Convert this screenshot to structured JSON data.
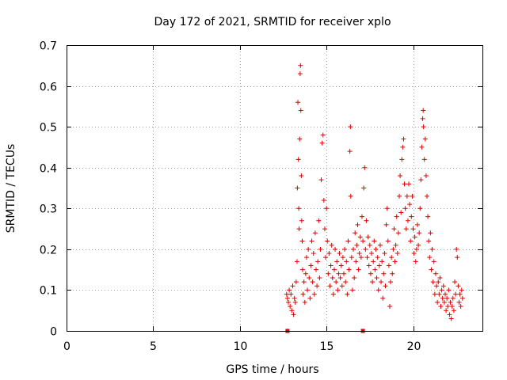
{
  "chart_data": {
    "type": "scatter",
    "title": "Day 172 of 2021, SRMTID for receiver xplo",
    "xlabel": "GPS time / hours",
    "ylabel": "SRMTID / TECUs",
    "xlim": [
      0,
      24
    ],
    "ylim": [
      0,
      0.7
    ],
    "xticks": [
      0,
      5,
      10,
      15,
      20
    ],
    "xtick_labels": [
      "0",
      "5",
      "10",
      "15",
      "20"
    ],
    "yticks": [
      0,
      0.1,
      0.2,
      0.3,
      0.4,
      0.5,
      0.6,
      0.7
    ],
    "ytick_labels": [
      "0",
      "0.1",
      "0.2",
      "0.3",
      "0.4",
      "0.5",
      "0.6",
      "0.7"
    ],
    "grid": true,
    "marker": "plus",
    "color": "#e00000",
    "gap_markers": [
      12.75,
      17.1
    ],
    "series": [
      {
        "name": "SRMTID",
        "points": [
          [
            12.7,
            0.09
          ],
          [
            12.75,
            0.08
          ],
          [
            12.8,
            0.07
          ],
          [
            12.85,
            0.1
          ],
          [
            12.9,
            0.06
          ],
          [
            12.95,
            0.09
          ],
          [
            13.0,
            0.05
          ],
          [
            13.05,
            0.11
          ],
          [
            13.1,
            0.04
          ],
          [
            13.15,
            0.08
          ],
          [
            13.2,
            0.07
          ],
          [
            13.25,
            0.12
          ],
          [
            13.3,
            0.17
          ],
          [
            13.32,
            0.35
          ],
          [
            13.35,
            0.56
          ],
          [
            13.38,
            0.42
          ],
          [
            13.4,
            0.3
          ],
          [
            13.42,
            0.25
          ],
          [
            13.45,
            0.47
          ],
          [
            13.48,
            0.63
          ],
          [
            13.5,
            0.65
          ],
          [
            13.52,
            0.54
          ],
          [
            13.55,
            0.38
          ],
          [
            13.57,
            0.27
          ],
          [
            13.6,
            0.22
          ],
          [
            13.62,
            0.15
          ],
          [
            13.65,
            0.09
          ],
          [
            13.7,
            0.12
          ],
          [
            13.75,
            0.07
          ],
          [
            13.8,
            0.14
          ],
          [
            13.85,
            0.18
          ],
          [
            13.9,
            0.1
          ],
          [
            13.95,
            0.2
          ],
          [
            14.0,
            0.13
          ],
          [
            14.05,
            0.08
          ],
          [
            14.1,
            0.16
          ],
          [
            14.15,
            0.22
          ],
          [
            14.2,
            0.12
          ],
          [
            14.25,
            0.19
          ],
          [
            14.3,
            0.09
          ],
          [
            14.35,
            0.24
          ],
          [
            14.4,
            0.15
          ],
          [
            14.45,
            0.11
          ],
          [
            14.5,
            0.17
          ],
          [
            14.55,
            0.27
          ],
          [
            14.6,
            0.13
          ],
          [
            14.65,
            0.2
          ],
          [
            14.7,
            0.37
          ],
          [
            14.75,
            0.46
          ],
          [
            14.8,
            0.48
          ],
          [
            14.85,
            0.32
          ],
          [
            14.9,
            0.25
          ],
          [
            14.95,
            0.18
          ],
          [
            15.0,
            0.3
          ],
          [
            15.05,
            0.22
          ],
          [
            15.1,
            0.14
          ],
          [
            15.15,
            0.19
          ],
          [
            15.2,
            0.11
          ],
          [
            15.25,
            0.16
          ],
          [
            15.3,
            0.21
          ],
          [
            15.35,
            0.13
          ],
          [
            15.4,
            0.09
          ],
          [
            15.45,
            0.15
          ],
          [
            15.5,
            0.2
          ],
          [
            15.55,
            0.12
          ],
          [
            15.6,
            0.17
          ],
          [
            15.65,
            0.1
          ],
          [
            15.7,
            0.14
          ],
          [
            15.75,
            0.19
          ],
          [
            15.8,
            0.13
          ],
          [
            15.85,
            0.16
          ],
          [
            15.9,
            0.11
          ],
          [
            15.95,
            0.18
          ],
          [
            16.0,
            0.14
          ],
          [
            16.05,
            0.2
          ],
          [
            16.1,
            0.12
          ],
          [
            16.15,
            0.17
          ],
          [
            16.2,
            0.09
          ],
          [
            16.25,
            0.22
          ],
          [
            16.3,
            0.15
          ],
          [
            16.35,
            0.44
          ],
          [
            16.38,
            0.5
          ],
          [
            16.4,
            0.33
          ],
          [
            16.45,
            0.18
          ],
          [
            16.5,
            0.1
          ],
          [
            16.55,
            0.2
          ],
          [
            16.6,
            0.13
          ],
          [
            16.65,
            0.24
          ],
          [
            16.7,
            0.17
          ],
          [
            16.75,
            0.21
          ],
          [
            16.8,
            0.26
          ],
          [
            16.85,
            0.15
          ],
          [
            16.9,
            0.19
          ],
          [
            16.95,
            0.23
          ],
          [
            17.0,
            0.18
          ],
          [
            17.05,
            0.28
          ],
          [
            17.1,
            0.22
          ],
          [
            17.15,
            0.35
          ],
          [
            17.2,
            0.4
          ],
          [
            17.25,
            0.2
          ],
          [
            17.3,
            0.27
          ],
          [
            17.35,
            0.18
          ],
          [
            17.4,
            0.23
          ],
          [
            17.45,
            0.16
          ],
          [
            17.5,
            0.21
          ],
          [
            17.55,
            0.14
          ],
          [
            17.6,
            0.19
          ],
          [
            17.65,
            0.12
          ],
          [
            17.7,
            0.17
          ],
          [
            17.75,
            0.22
          ],
          [
            17.8,
            0.15
          ],
          [
            17.85,
            0.2
          ],
          [
            17.9,
            0.13
          ],
          [
            17.95,
            0.18
          ],
          [
            18.0,
            0.1
          ],
          [
            18.05,
            0.16
          ],
          [
            18.1,
            0.21
          ],
          [
            18.15,
            0.12
          ],
          [
            18.2,
            0.17
          ],
          [
            18.25,
            0.08
          ],
          [
            18.3,
            0.14
          ],
          [
            18.35,
            0.19
          ],
          [
            18.4,
            0.11
          ],
          [
            18.45,
            0.26
          ],
          [
            18.5,
            0.3
          ],
          [
            18.55,
            0.22
          ],
          [
            18.6,
            0.16
          ],
          [
            18.65,
            0.06
          ],
          [
            18.7,
            0.12
          ],
          [
            18.75,
            0.18
          ],
          [
            18.8,
            0.14
          ],
          [
            18.85,
            0.2
          ],
          [
            18.9,
            0.25
          ],
          [
            18.95,
            0.17
          ],
          [
            19.0,
            0.21
          ],
          [
            19.05,
            0.28
          ],
          [
            19.1,
            0.19
          ],
          [
            19.15,
            0.24
          ],
          [
            19.2,
            0.33
          ],
          [
            19.25,
            0.38
          ],
          [
            19.3,
            0.29
          ],
          [
            19.35,
            0.42
          ],
          [
            19.4,
            0.45
          ],
          [
            19.45,
            0.47
          ],
          [
            19.5,
            0.36
          ],
          [
            19.55,
            0.3
          ],
          [
            19.6,
            0.25
          ],
          [
            19.65,
            0.33
          ],
          [
            19.7,
            0.27
          ],
          [
            19.75,
            0.36
          ],
          [
            19.8,
            0.31
          ],
          [
            19.85,
            0.22
          ],
          [
            19.9,
            0.28
          ],
          [
            19.95,
            0.33
          ],
          [
            20.0,
            0.25
          ],
          [
            20.05,
            0.19
          ],
          [
            20.1,
            0.23
          ],
          [
            20.15,
            0.17
          ],
          [
            20.2,
            0.2
          ],
          [
            20.25,
            0.26
          ],
          [
            20.3,
            0.21
          ],
          [
            20.35,
            0.24
          ],
          [
            20.4,
            0.3
          ],
          [
            20.45,
            0.37
          ],
          [
            20.5,
            0.45
          ],
          [
            20.55,
            0.52
          ],
          [
            20.58,
            0.54
          ],
          [
            20.6,
            0.5
          ],
          [
            20.65,
            0.42
          ],
          [
            20.7,
            0.47
          ],
          [
            20.75,
            0.38
          ],
          [
            20.8,
            0.33
          ],
          [
            20.85,
            0.28
          ],
          [
            20.9,
            0.22
          ],
          [
            20.95,
            0.18
          ],
          [
            21.0,
            0.24
          ],
          [
            21.05,
            0.15
          ],
          [
            21.1,
            0.2
          ],
          [
            21.15,
            0.12
          ],
          [
            21.2,
            0.17
          ],
          [
            21.25,
            0.09
          ],
          [
            21.3,
            0.14
          ],
          [
            21.35,
            0.11
          ],
          [
            21.4,
            0.07
          ],
          [
            21.45,
            0.12
          ],
          [
            21.5,
            0.09
          ],
          [
            21.55,
            0.13
          ],
          [
            21.6,
            0.06
          ],
          [
            21.65,
            0.1
          ],
          [
            21.7,
            0.08
          ],
          [
            21.75,
            0.11
          ],
          [
            21.8,
            0.07
          ],
          [
            21.85,
            0.09
          ],
          [
            21.9,
            0.05
          ],
          [
            21.95,
            0.08
          ],
          [
            22.0,
            0.06
          ],
          [
            22.05,
            0.1
          ],
          [
            22.1,
            0.04
          ],
          [
            22.15,
            0.07
          ],
          [
            22.2,
            0.03
          ],
          [
            22.25,
            0.06
          ],
          [
            22.3,
            0.08
          ],
          [
            22.35,
            0.05
          ],
          [
            22.4,
            0.12
          ],
          [
            22.45,
            0.09
          ],
          [
            22.5,
            0.2
          ],
          [
            22.55,
            0.18
          ],
          [
            22.6,
            0.11
          ],
          [
            22.65,
            0.07
          ],
          [
            22.7,
            0.09
          ],
          [
            22.75,
            0.06
          ],
          [
            22.8,
            0.1
          ],
          [
            22.85,
            0.08
          ]
        ]
      }
    ]
  }
}
